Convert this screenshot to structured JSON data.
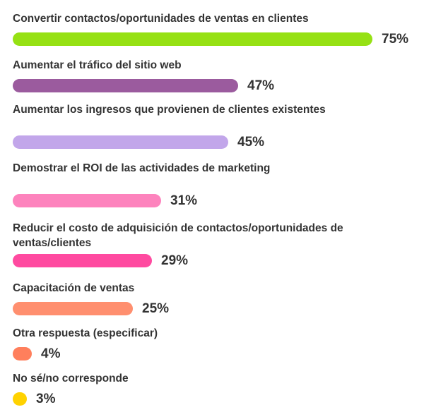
{
  "chart_data": {
    "type": "bar",
    "orientation": "horizontal",
    "title": "",
    "xlabel": "",
    "ylabel": "",
    "xlim": [
      0,
      100
    ],
    "categories": [
      "Convertir contactos/oportunidades de ventas en clientes",
      "Aumentar el tráfico del sitio web",
      "Aumentar los ingresos que provienen de clientes existentes",
      "Demostrar el ROI de las actividades de marketing",
      "Reducir el costo de adquisición de contactos/oportunidades de ventas/clientes",
      "Capacitación de ventas",
      "Otra respuesta (especificar)",
      "No sé/no corresponde"
    ],
    "values": [
      75,
      47,
      45,
      31,
      29,
      25,
      4,
      3
    ],
    "value_labels": [
      "75%",
      "47%",
      "45%",
      "31%",
      "29%",
      "25%",
      "4%",
      "3%"
    ],
    "colors": [
      "#96E114",
      "#9B5B9E",
      "#C2A6EA",
      "#FD83BD",
      "#FF4AA0",
      "#FF8F6F",
      "#FF7F5C",
      "#FFD200"
    ],
    "grid": false,
    "legend": "none"
  }
}
